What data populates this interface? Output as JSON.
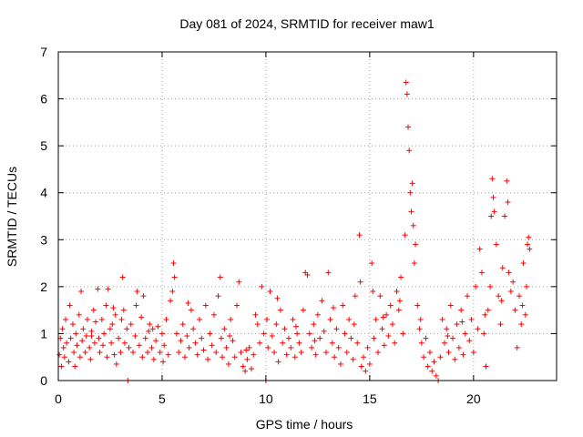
{
  "chart_data": {
    "type": "scatter",
    "title": "Day 081 of 2024, SRMTID for receiver maw1",
    "xlabel": "GPS time / hours",
    "ylabel": "SRMTID / TECUs",
    "xlim": [
      0,
      24
    ],
    "ylim": [
      0,
      7
    ],
    "xticks": [
      0,
      5,
      10,
      15,
      20
    ],
    "yticks": [
      0,
      1,
      2,
      3,
      4,
      5,
      6,
      7
    ],
    "grid": true,
    "marker": "+",
    "color": "#ff0000",
    "series": [
      {
        "name": "SRMTID",
        "points": [
          [
            0.05,
            0.55
          ],
          [
            0.1,
            0.9
          ],
          [
            0.15,
            0.3
          ],
          [
            0.2,
            1.1
          ],
          [
            0.25,
            0.7
          ],
          [
            0.3,
            0.5
          ],
          [
            0.35,
            1.3
          ],
          [
            0.4,
            0.8
          ],
          [
            0.5,
            0.4
          ],
          [
            0.55,
            1.6
          ],
          [
            0.6,
            0.9
          ],
          [
            0.7,
            1.2
          ],
          [
            0.75,
            0.6
          ],
          [
            0.8,
            0.3
          ],
          [
            0.85,
            1.0
          ],
          [
            0.9,
            0.75
          ],
          [
            1.0,
            1.4
          ],
          [
            1.05,
            0.5
          ],
          [
            1.1,
            1.9
          ],
          [
            1.15,
            0.85
          ],
          [
            1.2,
            1.1
          ],
          [
            1.3,
            0.6
          ],
          [
            1.35,
            0.95
          ],
          [
            1.4,
            1.3
          ],
          [
            1.5,
            0.7
          ],
          [
            1.55,
            0.45
          ],
          [
            1.6,
            1.05
          ],
          [
            1.7,
            1.5
          ],
          [
            1.75,
            0.8
          ],
          [
            1.8,
            1.25
          ],
          [
            1.9,
            1.95
          ],
          [
            1.95,
            0.9
          ],
          [
            2.0,
            0.6
          ],
          [
            2.1,
            1.3
          ],
          [
            2.15,
            0.75
          ],
          [
            2.2,
            1.0
          ],
          [
            2.3,
            1.6
          ],
          [
            2.35,
            0.5
          ],
          [
            2.4,
            1.95
          ],
          [
            2.5,
            1.1
          ],
          [
            2.55,
            0.8
          ],
          [
            2.6,
            1.2
          ],
          [
            2.7,
            0.55
          ],
          [
            2.75,
            1.4
          ],
          [
            2.8,
            0.35
          ],
          [
            2.9,
            0.9
          ],
          [
            3.0,
            0.6
          ],
          [
            3.05,
            1.3
          ],
          [
            3.1,
            2.2
          ],
          [
            3.15,
            1.5
          ],
          [
            3.2,
            0.8
          ],
          [
            3.3,
            1.1
          ],
          [
            3.35,
            0.0
          ],
          [
            3.4,
            0.7
          ],
          [
            3.5,
            1.2
          ],
          [
            3.6,
            0.6
          ],
          [
            3.7,
            0.95
          ],
          [
            3.75,
            1.6
          ],
          [
            3.8,
            1.9
          ],
          [
            3.9,
            0.75
          ],
          [
            4.0,
            1.35
          ],
          [
            4.05,
            0.5
          ],
          [
            4.1,
            1.8
          ],
          [
            4.2,
            0.9
          ],
          [
            4.3,
            0.6
          ],
          [
            4.35,
            1.05
          ],
          [
            4.4,
            1.2
          ],
          [
            4.5,
            0.7
          ],
          [
            4.6,
            0.45
          ],
          [
            4.7,
            0.85
          ],
          [
            4.8,
            1.15
          ],
          [
            4.9,
            0.6
          ],
          [
            5.0,
            1.0
          ],
          [
            5.05,
            0.4
          ],
          [
            5.1,
            0.75
          ],
          [
            5.2,
            1.3
          ],
          [
            5.3,
            0.55
          ],
          [
            5.4,
            1.7
          ],
          [
            5.5,
            1.9
          ],
          [
            5.55,
            2.5
          ],
          [
            5.6,
            2.2
          ],
          [
            5.7,
            1.0
          ],
          [
            5.8,
            0.6
          ],
          [
            5.9,
            0.85
          ],
          [
            6.0,
            1.2
          ],
          [
            6.1,
            0.5
          ],
          [
            6.2,
            0.95
          ],
          [
            6.3,
            0.7
          ],
          [
            6.4,
            1.5
          ],
          [
            6.5,
            1.1
          ],
          [
            6.6,
            0.8
          ],
          [
            6.7,
            0.55
          ],
          [
            6.8,
            1.3
          ],
          [
            6.9,
            0.9
          ],
          [
            7.0,
            0.65
          ],
          [
            7.1,
            1.6
          ],
          [
            7.2,
            0.45
          ],
          [
            7.3,
            1.0
          ],
          [
            7.4,
            0.75
          ],
          [
            7.5,
            1.4
          ],
          [
            7.6,
            0.6
          ],
          [
            7.7,
            1.8
          ],
          [
            7.8,
            2.2
          ],
          [
            7.85,
            0.9
          ],
          [
            7.9,
            0.5
          ],
          [
            8.0,
            1.1
          ],
          [
            8.1,
            0.7
          ],
          [
            8.2,
            0.35
          ],
          [
            8.3,
            1.3
          ],
          [
            8.4,
            0.85
          ],
          [
            8.5,
            0.5
          ],
          [
            8.6,
            1.6
          ],
          [
            8.7,
            2.1
          ],
          [
            8.8,
            0.6
          ],
          [
            8.9,
            0.3
          ],
          [
            9.0,
            0.2
          ],
          [
            9.1,
            0.45
          ],
          [
            9.2,
            0.7
          ],
          [
            9.3,
            0.25
          ],
          [
            9.4,
            0.55
          ],
          [
            9.5,
            1.4
          ],
          [
            9.6,
            1.2
          ],
          [
            9.7,
            0.8
          ],
          [
            9.8,
            2.0
          ],
          [
            9.9,
            1.0
          ],
          [
            10.0,
            0.0
          ],
          [
            10.05,
            1.3
          ],
          [
            10.1,
            0.7
          ],
          [
            10.2,
            1.9
          ],
          [
            10.3,
            0.95
          ],
          [
            10.4,
            0.6
          ],
          [
            10.5,
            1.2
          ],
          [
            10.6,
            0.4
          ],
          [
            10.7,
            1.5
          ],
          [
            10.8,
            0.8
          ],
          [
            10.9,
            1.1
          ],
          [
            11.0,
            0.55
          ],
          [
            11.1,
            0.9
          ],
          [
            11.2,
            0.7
          ],
          [
            11.3,
            1.3
          ],
          [
            11.4,
            0.5
          ],
          [
            11.5,
            1.0
          ],
          [
            11.6,
            0.8
          ],
          [
            11.7,
            0.6
          ],
          [
            11.8,
            1.5
          ],
          [
            11.9,
            2.3
          ],
          [
            12.0,
            2.25
          ],
          [
            12.1,
            1.0
          ],
          [
            12.2,
            0.7
          ],
          [
            12.3,
            1.2
          ],
          [
            12.4,
            0.55
          ],
          [
            12.5,
            1.4
          ],
          [
            12.6,
            0.9
          ],
          [
            12.7,
            1.7
          ],
          [
            12.8,
            1.05
          ],
          [
            12.9,
            0.6
          ],
          [
            13.0,
            2.3
          ],
          [
            13.1,
            1.3
          ],
          [
            13.2,
            0.8
          ],
          [
            13.3,
            0.5
          ],
          [
            13.4,
            1.1
          ],
          [
            13.5,
            0.7
          ],
          [
            13.6,
            0.35
          ],
          [
            13.7,
            1.6
          ],
          [
            13.8,
            1.0
          ],
          [
            13.9,
            0.6
          ],
          [
            14.0,
            1.3
          ],
          [
            14.1,
            0.9
          ],
          [
            14.2,
            0.45
          ],
          [
            14.3,
            1.8
          ],
          [
            14.4,
            0.8
          ],
          [
            14.5,
            3.1
          ],
          [
            14.55,
            2.1
          ],
          [
            14.6,
            0.3
          ],
          [
            14.7,
            0.5
          ],
          [
            14.8,
            0.2
          ],
          [
            14.9,
            0.7
          ],
          [
            15.0,
            0.35
          ],
          [
            15.1,
            2.5
          ],
          [
            15.2,
            0.9
          ],
          [
            15.3,
            1.3
          ],
          [
            15.4,
            0.6
          ],
          [
            15.5,
            1.8
          ],
          [
            15.6,
            1.1
          ],
          [
            15.7,
            0.75
          ],
          [
            15.8,
            1.4
          ],
          [
            15.9,
            0.95
          ],
          [
            16.0,
            1.6
          ],
          [
            16.1,
            1.2
          ],
          [
            16.2,
            0.8
          ],
          [
            16.3,
            1.9
          ],
          [
            16.4,
            1.5
          ],
          [
            16.5,
            2.2
          ],
          [
            16.6,
            1.0
          ],
          [
            16.7,
            3.1
          ],
          [
            16.75,
            6.35
          ],
          [
            16.8,
            6.1
          ],
          [
            16.85,
            5.4
          ],
          [
            16.9,
            4.9
          ],
          [
            16.95,
            4.0
          ],
          [
            17.0,
            3.6
          ],
          [
            17.05,
            4.2
          ],
          [
            17.1,
            3.3
          ],
          [
            17.15,
            2.5
          ],
          [
            17.2,
            2.9
          ],
          [
            17.3,
            1.6
          ],
          [
            17.4,
            1.1
          ],
          [
            17.5,
            0.8
          ],
          [
            17.6,
            0.5
          ],
          [
            17.7,
            0.9
          ],
          [
            17.8,
            0.3
          ],
          [
            17.9,
            0.6
          ],
          [
            18.0,
            0.2
          ],
          [
            18.1,
            0.4
          ],
          [
            18.2,
            0.1
          ],
          [
            18.3,
            0.0
          ],
          [
            18.4,
            0.5
          ],
          [
            18.5,
            1.3
          ],
          [
            18.6,
            0.8
          ],
          [
            18.7,
            1.1
          ],
          [
            18.8,
            0.6
          ],
          [
            18.9,
            1.6
          ],
          [
            19.0,
            0.9
          ],
          [
            19.1,
            0.45
          ],
          [
            19.2,
            1.2
          ],
          [
            19.3,
            0.7
          ],
          [
            19.4,
            1.5
          ],
          [
            19.5,
            0.55
          ],
          [
            19.6,
            1.0
          ],
          [
            19.7,
            1.8
          ],
          [
            19.8,
            0.85
          ],
          [
            19.9,
            1.3
          ],
          [
            20.0,
            0.6
          ],
          [
            20.1,
            2.0
          ],
          [
            20.2,
            1.1
          ],
          [
            20.3,
            2.8
          ],
          [
            20.4,
            2.3
          ],
          [
            20.5,
            1.0
          ],
          [
            20.6,
            0.3
          ],
          [
            20.7,
            1.5
          ],
          [
            20.8,
            2.0
          ],
          [
            20.85,
            3.5
          ],
          [
            20.9,
            4.3
          ],
          [
            20.95,
            3.9
          ],
          [
            21.0,
            3.6
          ],
          [
            21.1,
            2.9
          ],
          [
            21.2,
            1.8
          ],
          [
            21.3,
            1.2
          ],
          [
            21.4,
            2.4
          ],
          [
            21.5,
            3.5
          ],
          [
            21.6,
            4.25
          ],
          [
            21.65,
            3.8
          ],
          [
            21.7,
            2.3
          ],
          [
            21.8,
            1.9
          ],
          [
            21.9,
            2.1
          ],
          [
            22.0,
            1.5
          ],
          [
            22.1,
            0.7
          ],
          [
            22.2,
            1.8
          ],
          [
            22.3,
            1.2
          ],
          [
            22.4,
            2.5
          ],
          [
            22.5,
            1.4
          ],
          [
            22.55,
            2.0
          ],
          [
            22.6,
            2.9
          ],
          [
            22.65,
            3.05
          ],
          [
            22.7,
            2.8
          ],
          [
            1.6,
            0.95
          ],
          [
            2.65,
            1.55
          ],
          [
            4.55,
            1.1
          ],
          [
            6.25,
            1.65
          ],
          [
            8.25,
            0.95
          ],
          [
            9.05,
            0.65
          ],
          [
            10.55,
            1.75
          ],
          [
            11.45,
            1.15
          ],
          [
            12.35,
            0.85
          ],
          [
            13.25,
            1.55
          ],
          [
            14.25,
            1.2
          ],
          [
            15.15,
            1.9
          ],
          [
            15.65,
            1.35
          ],
          [
            16.45,
            1.7
          ],
          [
            17.45,
            1.3
          ],
          [
            18.75,
            0.95
          ],
          [
            19.45,
            1.25
          ],
          [
            20.55,
            1.4
          ],
          [
            21.35,
            1.7
          ],
          [
            22.35,
            1.6
          ]
        ]
      }
    ]
  }
}
